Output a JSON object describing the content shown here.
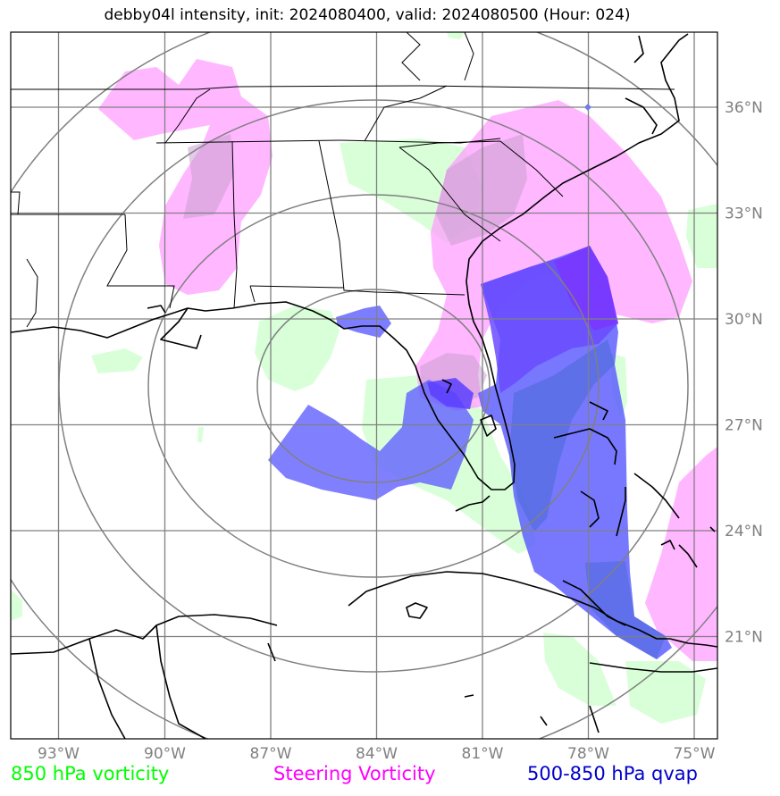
{
  "title": "debby04l intensity, init: 2024080400, valid: 2024080500 (Hour: 024)",
  "map": {
    "extent": {
      "lon_min": -94.2,
      "lon_max": -74.2,
      "lat_min": 18.0,
      "lat_max": 38.0
    },
    "grid_color": "#808080",
    "lon_ticks": [
      {
        "lon": -93,
        "label": "93°W"
      },
      {
        "lon": -90,
        "label": "90°W"
      },
      {
        "lon": -87,
        "label": "87°W"
      },
      {
        "lon": -84,
        "label": "84°W"
      },
      {
        "lon": -81,
        "label": "81°W"
      },
      {
        "lon": -78,
        "label": "78°W"
      },
      {
        "lon": -75,
        "label": "75°W"
      }
    ],
    "lat_ticks": [
      {
        "lat": 36,
        "label": "36°N"
      },
      {
        "lat": 33,
        "label": "33°N"
      },
      {
        "lat": 30,
        "label": "30°N"
      },
      {
        "lat": 27,
        "label": "27°N"
      },
      {
        "lat": 24,
        "label": "24°N"
      },
      {
        "lat": 21,
        "label": "21°N"
      }
    ],
    "range_rings": {
      "center_lon": -84.2,
      "center_lat": 28.2,
      "radii_deg": [
        3,
        6,
        9,
        12
      ]
    },
    "marker": {
      "lon": -78,
      "lat": 36,
      "color": "#6f7fe6"
    }
  },
  "legend": {
    "vort850": {
      "label": "850 hPa vorticity",
      "color": "#00ff00"
    },
    "steering": {
      "label": "Steering Vorticity",
      "color": "#ff00ff"
    },
    "qvap": {
      "label": "500-850 hPa qvap",
      "color": "#0000cc"
    }
  },
  "colors": {
    "vort850_fill": "#ccffcc",
    "steering_fill": "#ff99ff",
    "qvap_fill": "#4040ff",
    "qvap_strong": "#7733ff"
  }
}
